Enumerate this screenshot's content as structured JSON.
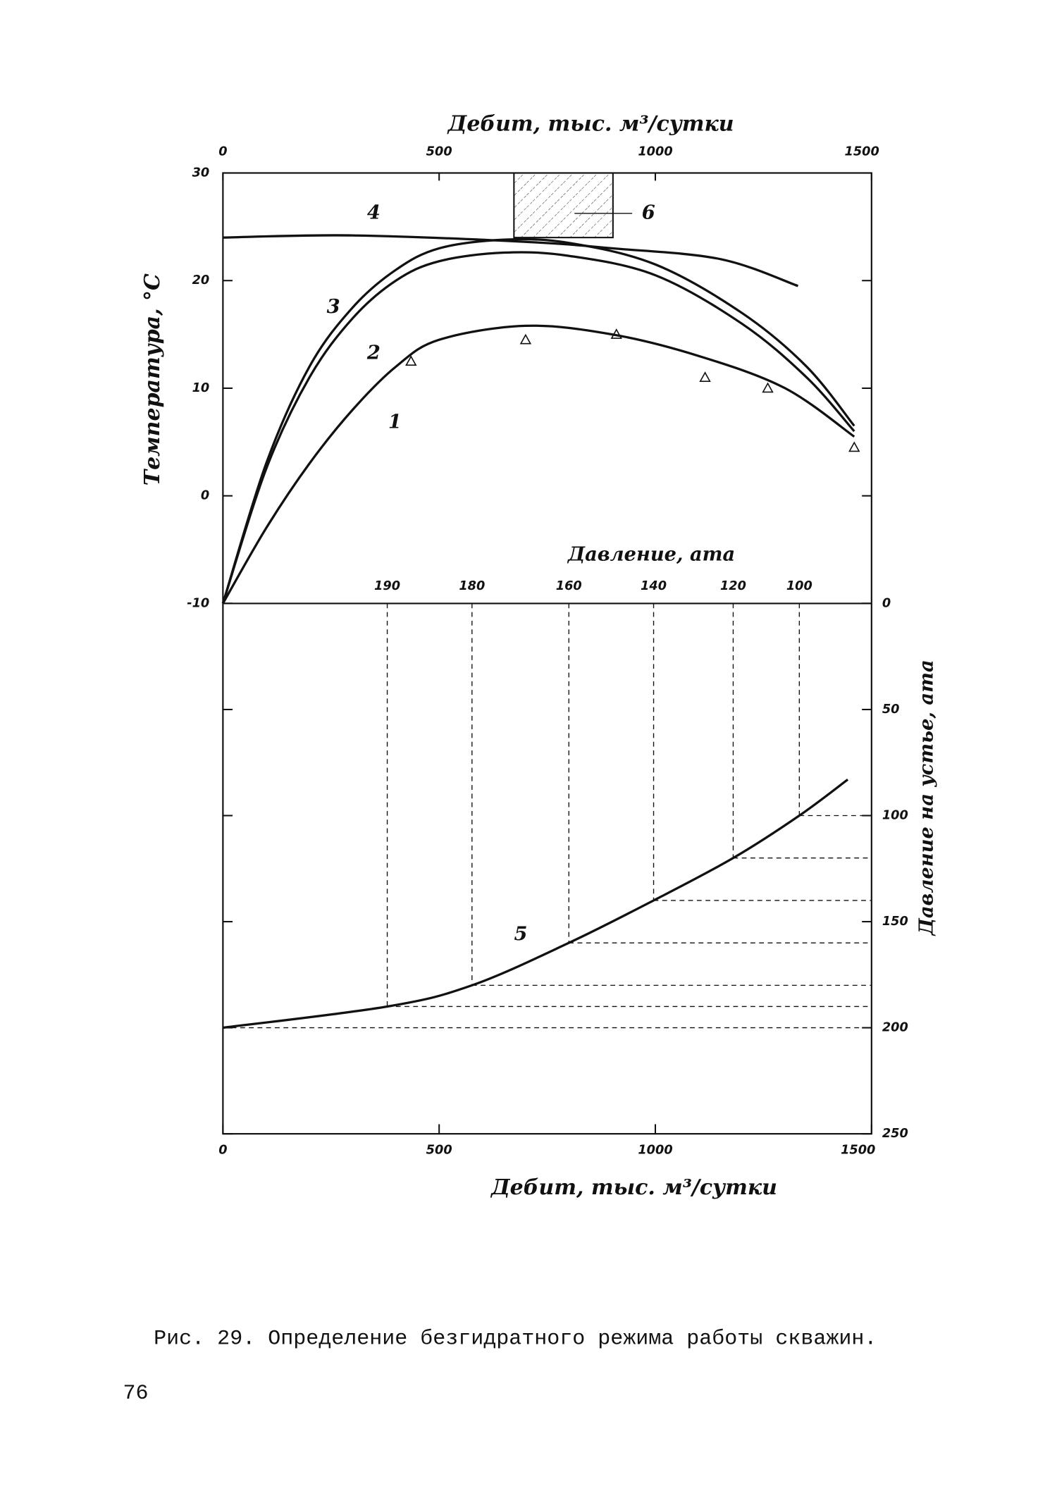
{
  "chart_data": [
    {
      "type": "line",
      "x_label": "Дебит, тыс. м³/сутки",
      "y_label": "Температура, °С",
      "xlim": [
        0,
        1500
      ],
      "xticks": [
        0,
        500,
        1000,
        1500
      ],
      "ylim": [
        -10,
        30
      ],
      "yticks": [
        30,
        20,
        10,
        0,
        -10
      ],
      "series": [
        {
          "name": "1",
          "color": "#111",
          "x": [
            0,
            100,
            200,
            300,
            400,
            500,
            700,
            900,
            1100,
            1300,
            1460
          ],
          "values": [
            -10,
            -3,
            3,
            8,
            12,
            14.5,
            15.8,
            15,
            13,
            10,
            5.5
          ]
        },
        {
          "name": "2",
          "color": "#111",
          "x": [
            0,
            100,
            200,
            300,
            400,
            500,
            650,
            800,
            1000,
            1200,
            1350,
            1460
          ],
          "values": [
            -10,
            2.5,
            11,
            16.5,
            20,
            21.8,
            22.6,
            22.3,
            20.5,
            16,
            11,
            6
          ]
        },
        {
          "name": "3",
          "color": "#111",
          "x": [
            0,
            100,
            200,
            300,
            400,
            500,
            650,
            800,
            1000,
            1200,
            1350,
            1460
          ],
          "values": [
            -10,
            3,
            12,
            17.5,
            21,
            23,
            23.8,
            23.5,
            21.5,
            17,
            12,
            6.5
          ]
        },
        {
          "name": "4",
          "color": "#111",
          "x": [
            0,
            300,
            700,
            900,
            1150,
            1330
          ],
          "values": [
            24,
            24.2,
            23.6,
            23,
            22,
            19.5
          ]
        }
      ],
      "points": {
        "x": [
          435,
          700,
          910,
          1115,
          1260,
          1460
        ],
        "values": [
          12.5,
          14.5,
          15,
          11,
          10,
          4.5
        ]
      },
      "region": {
        "label": "6",
        "x": [
          673,
          902
        ],
        "values": [
          24,
          30
        ]
      }
    },
    {
      "type": "line",
      "x_label": "Дебит, тыс. м³/сутки",
      "y_label": "Давление на устье, ата",
      "xlim": [
        0,
        1500
      ],
      "xticks": [
        0,
        500,
        1000,
        1500
      ],
      "ylim": [
        0,
        250
      ],
      "yticks": [
        0,
        50,
        100,
        150,
        200,
        250
      ],
      "series": [
        {
          "name": "5",
          "color": "#111",
          "x": [
            0,
            380,
            576,
            800,
            996,
            1180,
            1333,
            1445
          ],
          "values": [
            200,
            190,
            180,
            160,
            140,
            120,
            100,
            83
          ]
        }
      ],
      "pressure_axis": {
        "label": "Давление, ата",
        "ticks": [
          190,
          180,
          160,
          140,
          120,
          100
        ],
        "x": [
          380,
          576,
          800,
          996,
          1180,
          1333
        ]
      }
    }
  ],
  "caption": "Рис. 29. Определение безгидратного режима работы скважин.",
  "page_number": "76"
}
